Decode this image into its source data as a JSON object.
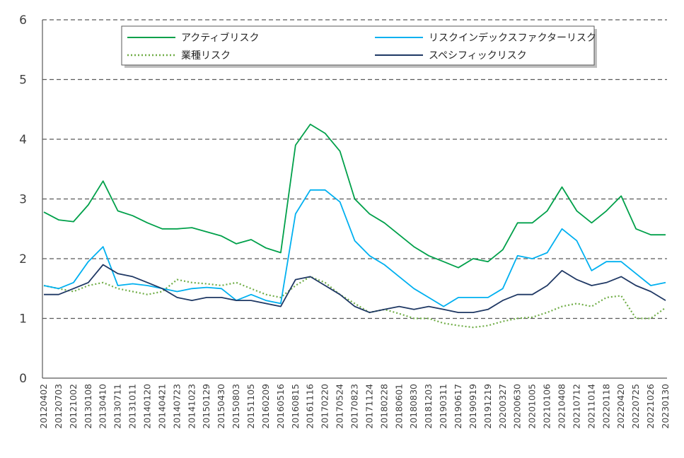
{
  "chart_data": {
    "type": "line",
    "title": "",
    "xlabel": "",
    "ylabel": "",
    "ylim": [
      0,
      6
    ],
    "yticks": [
      "0",
      "1",
      "2",
      "3",
      "4",
      "5",
      "6"
    ],
    "grid": "horizontal dashed",
    "legend_position": "top",
    "x": [
      "20120402",
      "20120703",
      "20121002",
      "20130108",
      "20130410",
      "20130711",
      "20131011",
      "20140120",
      "20140421",
      "20140723",
      "20141023",
      "20150129",
      "20150430",
      "20150803",
      "20151105",
      "20160209",
      "20160516",
      "20160815",
      "20161116",
      "20170220",
      "20170524",
      "20170823",
      "20171124",
      "20180228",
      "20180601",
      "20180830",
      "20181203",
      "20190311",
      "20190617",
      "20190919",
      "20191219",
      "20200327",
      "20200630",
      "20201005",
      "20210106",
      "20210408",
      "20210712",
      "20211014",
      "20220118",
      "20220420",
      "20220725",
      "20221026",
      "20230130"
    ],
    "series": [
      {
        "name": "アクティブリスク",
        "color": "#00a04a",
        "style": "solid",
        "values": [
          2.78,
          2.65,
          2.62,
          2.9,
          3.3,
          2.8,
          2.72,
          2.6,
          2.5,
          2.5,
          2.52,
          2.45,
          2.38,
          2.25,
          2.32,
          2.18,
          2.1,
          3.9,
          4.25,
          4.1,
          3.8,
          3.0,
          2.75,
          2.6,
          2.4,
          2.2,
          2.05,
          1.95,
          1.85,
          2.0,
          1.95,
          2.15,
          2.6,
          2.6,
          2.8,
          3.2,
          2.8,
          2.6,
          2.8,
          3.05,
          2.5,
          2.4,
          2.4
        ]
      },
      {
        "name": "業種リスク",
        "color": "#70ad47",
        "style": "dotted",
        "values": [
          1.55,
          1.5,
          1.45,
          1.55,
          1.6,
          1.5,
          1.45,
          1.4,
          1.45,
          1.65,
          1.6,
          1.58,
          1.55,
          1.6,
          1.5,
          1.4,
          1.35,
          1.55,
          1.7,
          1.6,
          1.4,
          1.25,
          1.1,
          1.15,
          1.08,
          1.0,
          1.0,
          0.92,
          0.88,
          0.85,
          0.88,
          0.95,
          1.0,
          1.02,
          1.1,
          1.2,
          1.25,
          1.2,
          1.35,
          1.38,
          1.0,
          1.0,
          1.18
        ]
      },
      {
        "name": "リスクインデックスファクターリスク",
        "color": "#00b0f0",
        "style": "solid",
        "values": [
          1.55,
          1.5,
          1.6,
          1.95,
          2.2,
          1.55,
          1.58,
          1.55,
          1.5,
          1.45,
          1.5,
          1.52,
          1.5,
          1.3,
          1.4,
          1.3,
          1.25,
          2.75,
          3.15,
          3.15,
          2.95,
          2.3,
          2.05,
          1.9,
          1.7,
          1.5,
          1.35,
          1.2,
          1.35,
          1.35,
          1.35,
          1.5,
          2.05,
          2.0,
          2.1,
          2.5,
          2.3,
          1.8,
          1.95,
          1.95,
          1.75,
          1.55,
          1.6
        ]
      },
      {
        "name": "スペシフィックリスク",
        "color": "#1f3864",
        "style": "solid",
        "values": [
          1.4,
          1.4,
          1.5,
          1.6,
          1.9,
          1.75,
          1.7,
          1.6,
          1.5,
          1.35,
          1.3,
          1.35,
          1.35,
          1.3,
          1.3,
          1.25,
          1.2,
          1.65,
          1.7,
          1.55,
          1.4,
          1.2,
          1.1,
          1.15,
          1.2,
          1.15,
          1.2,
          1.15,
          1.1,
          1.1,
          1.15,
          1.3,
          1.4,
          1.4,
          1.55,
          1.8,
          1.65,
          1.55,
          1.6,
          1.7,
          1.55,
          1.45,
          1.3
        ]
      }
    ]
  }
}
